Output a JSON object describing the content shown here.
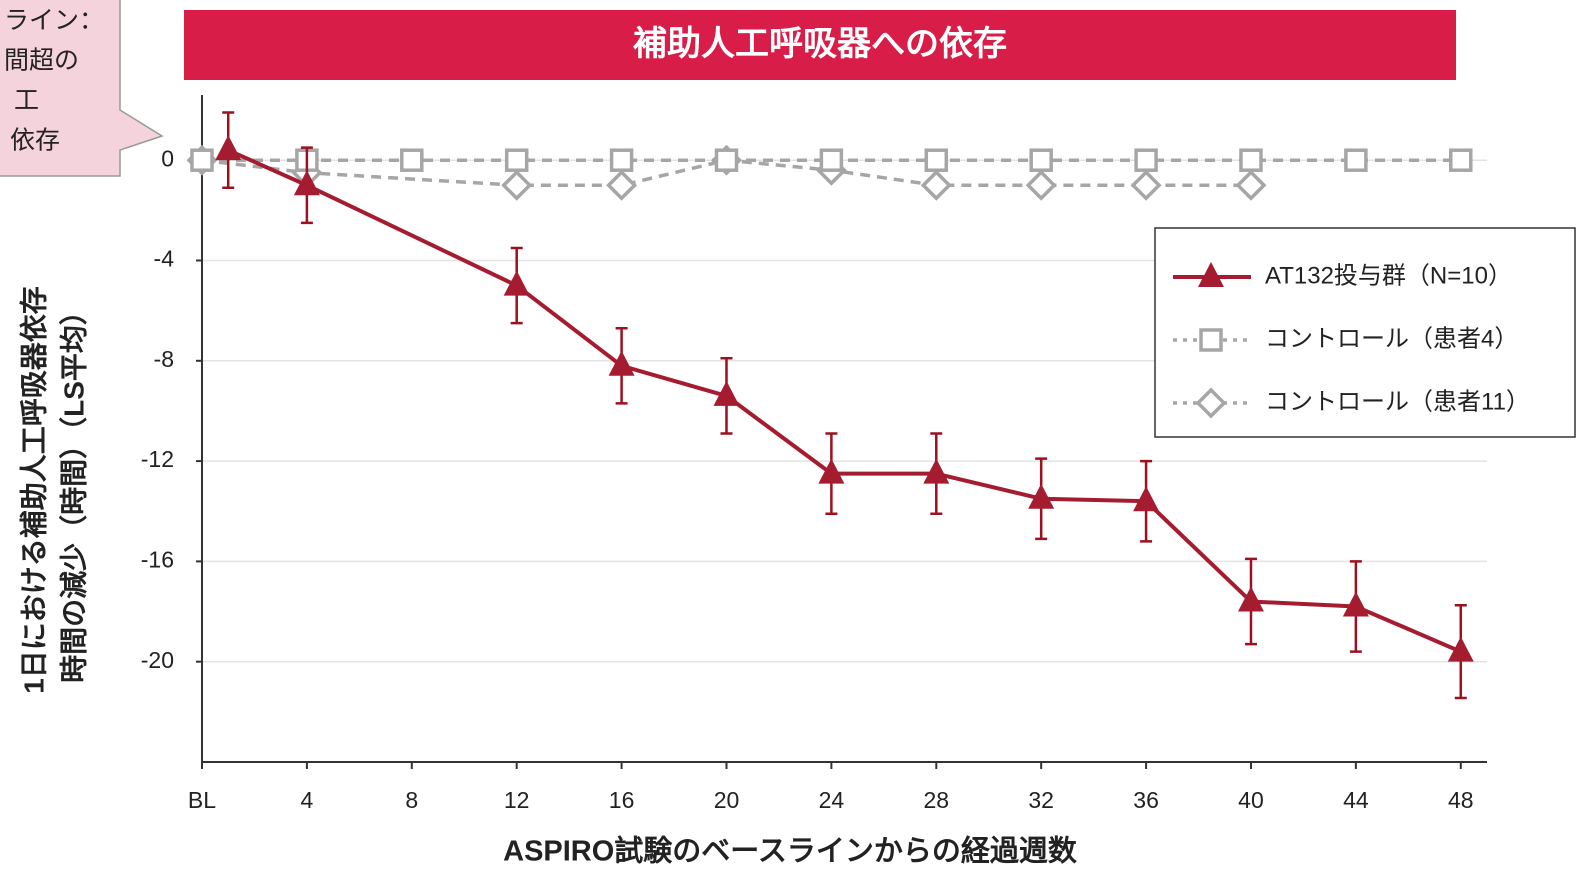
{
  "chart_data": {
    "type": "line",
    "title": "補助人工呼吸器への依存",
    "callout": [
      "ライン：",
      "間超の",
      "工",
      "依存"
    ],
    "ylabel": [
      "1日における補助人工呼吸器依存",
      "時間の減少（時間）（LS平均）"
    ],
    "xlabel": "ASPIRO試験のベースラインからの経過週数",
    "xlim": [
      0,
      49
    ],
    "ylim": [
      -24,
      2.6
    ],
    "xticks": [
      {
        "value": 0,
        "label": "BL"
      },
      4,
      8,
      12,
      16,
      20,
      24,
      28,
      32,
      36,
      40,
      44,
      48
    ],
    "yticks": [
      0,
      -4,
      -8,
      -12,
      -16,
      -20
    ],
    "grid": true,
    "legend": "upper right",
    "series": [
      {
        "name": "AT132投与群（N=10）",
        "color": "#a51c30",
        "marker": "triangle",
        "style": "solid",
        "x": [
          1,
          4,
          12,
          16,
          20,
          24,
          28,
          32,
          36,
          40,
          44,
          48
        ],
        "values": [
          0.4,
          -1,
          -5,
          -8.2,
          -9.4,
          -12.5,
          -12.5,
          -13.5,
          -13.6,
          -17.6,
          -17.8,
          -19.6
        ],
        "errors": [
          1.5,
          1.5,
          1.5,
          1.5,
          1.5,
          1.6,
          1.6,
          1.6,
          1.6,
          1.7,
          1.8,
          1.85
        ]
      },
      {
        "name": "コントロール（患者4）",
        "color": "#a6a6a6",
        "marker": "square",
        "style": "dashed",
        "x": [
          0,
          4,
          8,
          12,
          16,
          20,
          24,
          28,
          32,
          36,
          40,
          44,
          48
        ],
        "values": [
          0,
          0,
          0,
          0,
          0,
          0,
          0,
          0,
          0,
          0,
          0,
          0,
          0
        ]
      },
      {
        "name": "コントロール（患者11）",
        "color": "#a6a6a6",
        "marker": "diamond",
        "style": "dashed",
        "x": [
          0,
          4,
          12,
          16,
          20,
          24,
          28,
          32,
          36,
          40
        ],
        "values": [
          0,
          -0.5,
          -1,
          -1,
          0,
          -0.4,
          -1,
          -1,
          -1,
          -1
        ]
      }
    ]
  }
}
